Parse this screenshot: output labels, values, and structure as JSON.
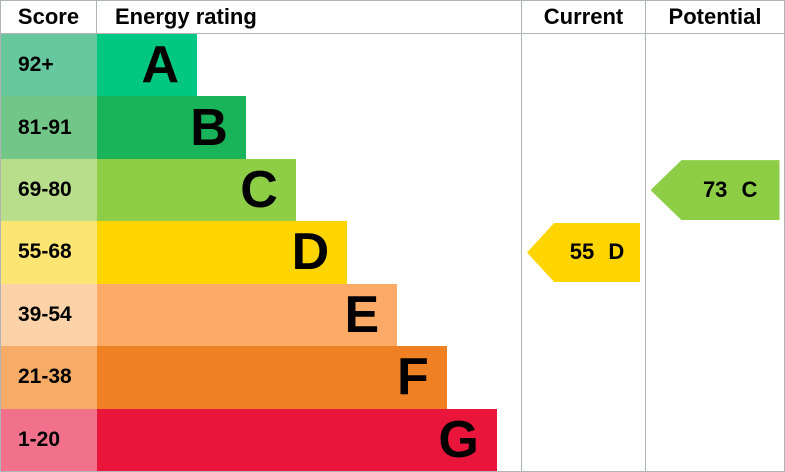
{
  "header": {
    "score": "Score",
    "energy_rating": "Energy rating",
    "current": "Current",
    "potential": "Potential"
  },
  "bands": [
    {
      "letter": "A",
      "score": "92+",
      "bar_color": "#00c781",
      "score_color": "#66c89c",
      "width": "23.6%"
    },
    {
      "letter": "B",
      "score": "81-91",
      "bar_color": "#19b459",
      "score_color": "#72c687",
      "width": "35.1%"
    },
    {
      "letter": "C",
      "score": "69-80",
      "bar_color": "#8dce46",
      "score_color": "#b8dd8b",
      "width": "46.9%"
    },
    {
      "letter": "D",
      "score": "55-68",
      "bar_color": "#ffd500",
      "score_color": "#fde574",
      "width": "59.0%"
    },
    {
      "letter": "E",
      "score": "39-54",
      "bar_color": "#fcaa65",
      "score_color": "#fcd3a8",
      "width": "70.8%"
    },
    {
      "letter": "F",
      "score": "21-38",
      "bar_color": "#ef8023",
      "score_color": "#f6ac66",
      "width": "82.5%"
    },
    {
      "letter": "G",
      "score": "1-20",
      "bar_color": "#e9153b",
      "score_color": "#f1718c",
      "width": "94.3%"
    }
  ],
  "current_rating": {
    "label": "55 D",
    "value": 55,
    "band": "D",
    "color": "#ffd500"
  },
  "potential_rating": {
    "label": "73 C",
    "value": 73,
    "band": "C",
    "color": "#8dce46"
  },
  "border_color": "#b1b4b6",
  "chart_data": {
    "type": "bar",
    "title": "Energy rating",
    "orientation": "horizontal",
    "categories": [
      "A",
      "B",
      "C",
      "D",
      "E",
      "F",
      "G"
    ],
    "score_ranges": [
      "92+",
      "81-91",
      "69-80",
      "55-68",
      "39-54",
      "21-38",
      "1-20"
    ],
    "band_colors": [
      "#00c781",
      "#19b459",
      "#8dce46",
      "#ffd500",
      "#fcaa65",
      "#ef8023",
      "#e9153b"
    ],
    "relative_bar_widths_pct": [
      23.6,
      35.1,
      46.9,
      59.0,
      70.8,
      82.5,
      94.3
    ],
    "columns": [
      "Score",
      "Energy rating",
      "Current",
      "Potential"
    ],
    "current": {
      "value": 55,
      "band": "D"
    },
    "potential": {
      "value": 73,
      "band": "C"
    },
    "legend_position": "none",
    "grid": false
  }
}
